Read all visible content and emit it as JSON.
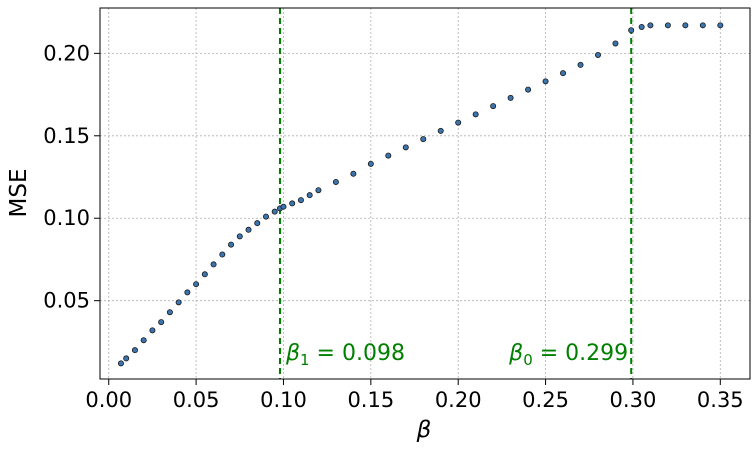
{
  "chart_data": {
    "type": "scatter",
    "xlabel": "β",
    "ylabel": "MSE",
    "xlim": [
      -0.005,
      0.367
    ],
    "ylim": [
      0.0025,
      0.2275
    ],
    "x_ticks": [
      0.0,
      0.05,
      0.1,
      0.15,
      0.2,
      0.25,
      0.3,
      0.35
    ],
    "x_tick_labels": [
      "0.00",
      "0.05",
      "0.10",
      "0.15",
      "0.20",
      "0.25",
      "0.30",
      "0.35"
    ],
    "y_ticks": [
      0.05,
      0.1,
      0.15,
      0.2
    ],
    "y_tick_labels": [
      "0.05",
      "0.10",
      "0.15",
      "0.20"
    ],
    "grid": true,
    "marker_color": "#3b75af",
    "marker_edge_color": "#1a1a1a",
    "vline_color": "#008000",
    "vlines": [
      {
        "x": 0.098,
        "label_symbol": "β",
        "label_subscript": "1",
        "label_value": " = 0.098"
      },
      {
        "x": 0.299,
        "label_symbol": "β",
        "label_subscript": "0",
        "label_value": " = 0.299"
      }
    ],
    "series": [
      {
        "x": [
          0.007,
          0.01,
          0.015,
          0.02,
          0.025,
          0.03,
          0.035,
          0.04,
          0.045,
          0.05,
          0.055,
          0.06,
          0.065,
          0.07,
          0.075,
          0.08,
          0.085,
          0.09,
          0.095,
          0.098,
          0.1,
          0.105,
          0.11,
          0.115,
          0.12,
          0.13,
          0.14,
          0.15,
          0.16,
          0.17,
          0.18,
          0.19,
          0.2,
          0.21,
          0.22,
          0.23,
          0.24,
          0.25,
          0.26,
          0.27,
          0.28,
          0.29,
          0.299,
          0.305,
          0.31,
          0.32,
          0.33,
          0.34,
          0.35
        ],
        "y": [
          0.012,
          0.015,
          0.02,
          0.026,
          0.032,
          0.037,
          0.043,
          0.049,
          0.055,
          0.06,
          0.066,
          0.072,
          0.078,
          0.084,
          0.089,
          0.093,
          0.097,
          0.101,
          0.104,
          0.106,
          0.107,
          0.109,
          0.111,
          0.114,
          0.117,
          0.122,
          0.127,
          0.133,
          0.138,
          0.143,
          0.148,
          0.153,
          0.158,
          0.163,
          0.168,
          0.173,
          0.178,
          0.183,
          0.188,
          0.193,
          0.199,
          0.206,
          0.214,
          0.216,
          0.217,
          0.217,
          0.217,
          0.217,
          0.217
        ]
      }
    ]
  }
}
